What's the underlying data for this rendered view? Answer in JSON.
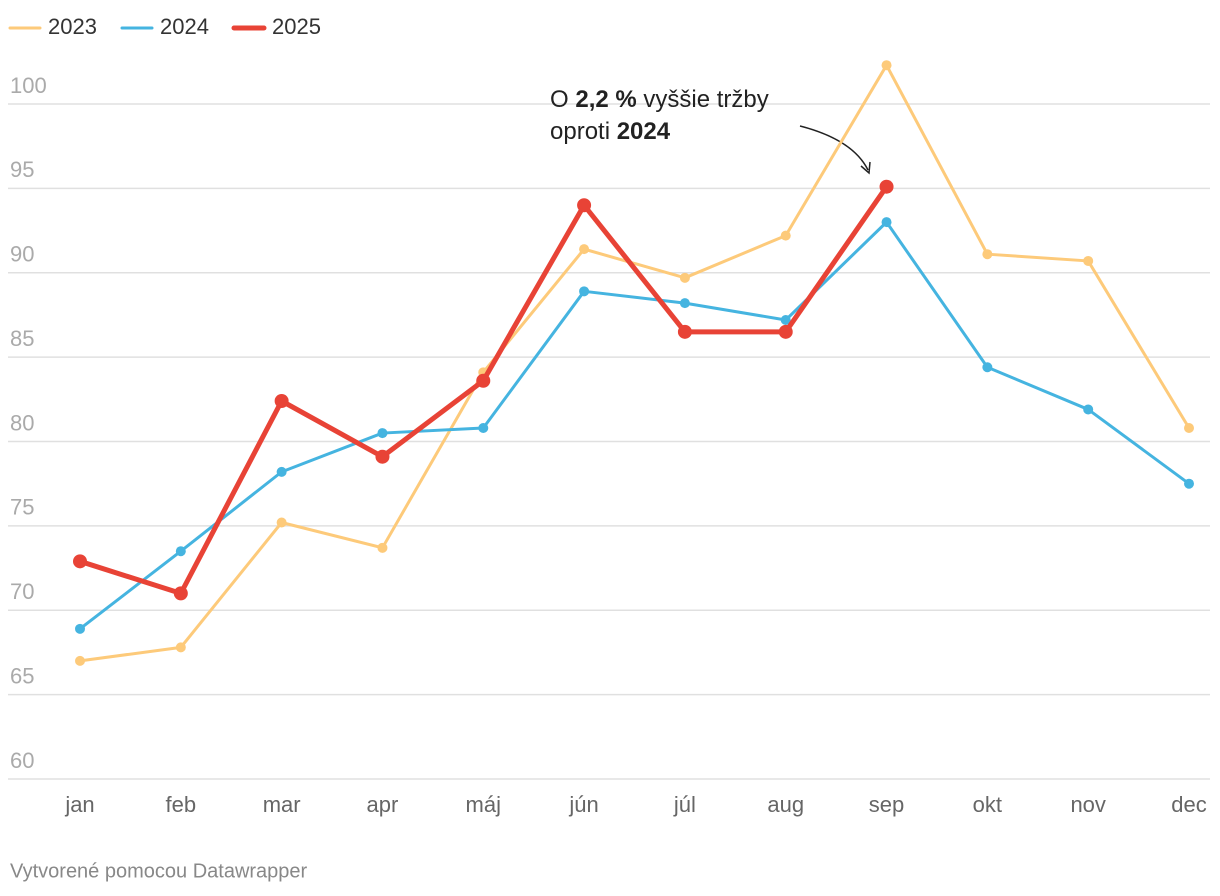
{
  "chart_data": {
    "type": "line",
    "categories": [
      "jan",
      "feb",
      "mar",
      "apr",
      "máj",
      "jún",
      "júl",
      "aug",
      "sep",
      "okt",
      "nov",
      "dec"
    ],
    "series": [
      {
        "name": "2023",
        "color": "#fdca7a",
        "values": [
          67.0,
          67.8,
          75.2,
          73.7,
          84.1,
          91.4,
          89.7,
          92.2,
          102.3,
          91.1,
          90.7,
          80.8
        ]
      },
      {
        "name": "2024",
        "color": "#45b4e0",
        "values": [
          68.9,
          73.5,
          78.2,
          80.5,
          80.8,
          88.9,
          88.2,
          87.2,
          93.0,
          84.4,
          81.9,
          77.5
        ]
      },
      {
        "name": "2025",
        "color": "#e84336",
        "values": [
          72.9,
          71.0,
          82.4,
          79.1,
          83.6,
          94.0,
          86.5,
          86.5,
          95.1,
          null,
          null,
          null
        ]
      }
    ],
    "ylim": [
      60,
      100
    ],
    "yticks": [
      60,
      65,
      70,
      75,
      80,
      85,
      90,
      95,
      100
    ],
    "grid": true,
    "annotation": [
      [
        {
          "text": "O "
        },
        {
          "text": "2,2 %",
          "bold": true
        },
        {
          "text": " vyššie tržby"
        }
      ],
      [
        {
          "text": "oproti "
        },
        {
          "text": "2024",
          "bold": true
        }
      ]
    ],
    "credit": "Vytvorené pomocou Datawrapper"
  }
}
